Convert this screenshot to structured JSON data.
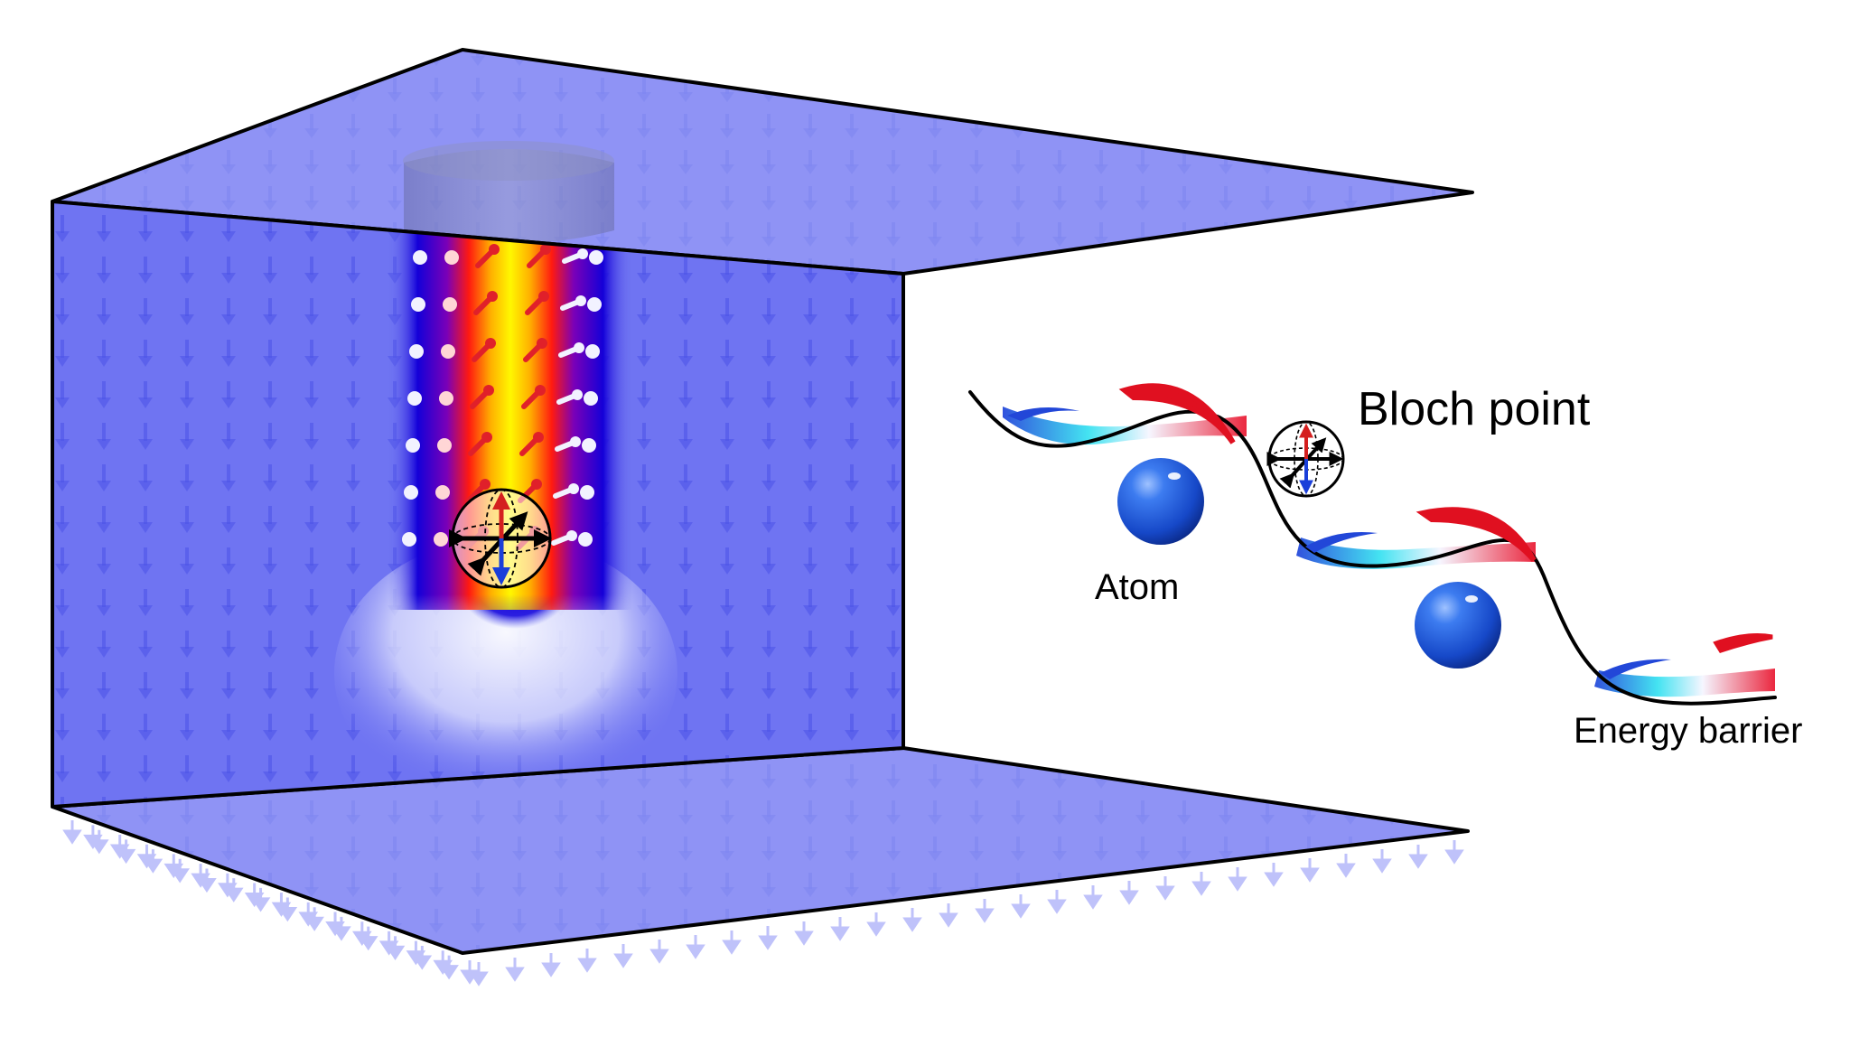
{
  "labels": {
    "bloch_point": "Bloch point",
    "atom": "Atom",
    "energy_barrier": "Energy barrier"
  },
  "colors": {
    "background": "#ffffff",
    "slab_fill": "#6f74f2",
    "slab_edge": "#000000",
    "arrow_field": "#4a52e6",
    "tube_core": "#fff700",
    "tube_mid": "#ff2a0e",
    "tube_outer": "#1400d8",
    "atom": "#1f5fe0",
    "spin_up": "#d41f1f",
    "spin_down": "#1a3fd9",
    "landscape_curve": "#000000"
  },
  "icons": {
    "bloch_sphere": "bloch-sphere-icon",
    "atom": "atom-sphere-icon"
  }
}
